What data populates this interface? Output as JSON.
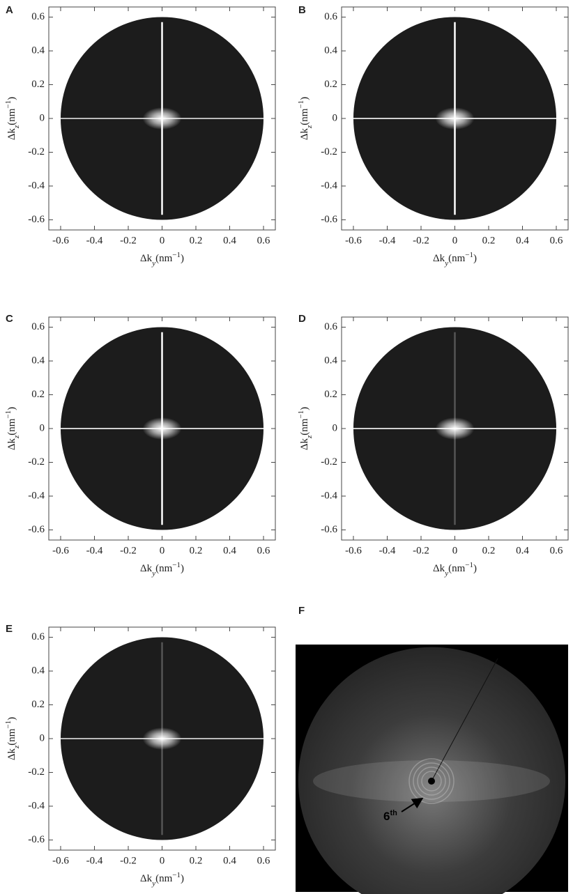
{
  "chart_data": [
    {
      "type": "diffraction",
      "label": "A",
      "xlabel": [
        "Δk",
        "y",
        "(nm",
        "−1",
        ")"
      ],
      "ylabel": [
        "Δk",
        "z",
        "(nm",
        "−1",
        ")"
      ],
      "xlim": [
        -0.67,
        0.67
      ],
      "ylim": [
        -0.66,
        0.66
      ],
      "xticks": [
        -0.6,
        -0.4,
        -0.2,
        0.0,
        0.2,
        0.4,
        0.6
      ],
      "yticks": [
        -0.6,
        -0.4,
        -0.2,
        0.0,
        0.2,
        0.4,
        0.6
      ],
      "disk_radius": 0.6
    },
    {
      "type": "diffraction",
      "label": "B",
      "xlabel": [
        "Δk",
        "y",
        "(nm",
        "−1",
        ")"
      ],
      "ylabel": [
        "Δk",
        "z",
        "(nm",
        "−1",
        ")"
      ],
      "xlim": [
        -0.67,
        0.67
      ],
      "ylim": [
        -0.66,
        0.66
      ],
      "xticks": [
        -0.6,
        -0.4,
        -0.2,
        0.0,
        0.2,
        0.4,
        0.6
      ],
      "yticks": [
        -0.6,
        -0.4,
        -0.2,
        0.0,
        0.2,
        0.4,
        0.6
      ],
      "disk_radius": 0.6
    },
    {
      "type": "diffraction",
      "label": "C",
      "xlabel": [
        "Δk",
        "y",
        "(nm",
        "−1",
        ")"
      ],
      "ylabel": [
        "Δk",
        "z",
        "(nm",
        "−1",
        ")"
      ],
      "xlim": [
        -0.67,
        0.67
      ],
      "ylim": [
        -0.66,
        0.66
      ],
      "xticks": [
        -0.6,
        -0.4,
        -0.2,
        0.0,
        0.2,
        0.4,
        0.6
      ],
      "yticks": [
        -0.6,
        -0.4,
        -0.2,
        0.0,
        0.2,
        0.4,
        0.6
      ],
      "disk_radius": 0.6
    },
    {
      "type": "diffraction",
      "label": "D",
      "xlabel": [
        "Δk",
        "y",
        "(nm",
        "−1",
        ")"
      ],
      "ylabel": [
        "Δk",
        "z",
        "(nm",
        "−1",
        ")"
      ],
      "xlim": [
        -0.67,
        0.67
      ],
      "ylim": [
        -0.66,
        0.66
      ],
      "xticks": [
        -0.6,
        -0.4,
        -0.2,
        0.0,
        0.2,
        0.4,
        0.6
      ],
      "yticks": [
        -0.6,
        -0.4,
        -0.2,
        0.0,
        0.2,
        0.4,
        0.6
      ],
      "disk_radius": 0.6
    },
    {
      "type": "diffraction",
      "label": "E",
      "xlabel": [
        "Δk",
        "y",
        "(nm",
        "−1",
        ")"
      ],
      "ylabel": [
        "Δk",
        "z",
        "(nm",
        "−1",
        ")"
      ],
      "xlim": [
        -0.67,
        0.67
      ],
      "ylim": [
        -0.66,
        0.66
      ],
      "xticks": [
        -0.6,
        -0.4,
        -0.2,
        0.0,
        0.2,
        0.4,
        0.6
      ],
      "yticks": [
        -0.6,
        -0.4,
        -0.2,
        0.0,
        0.2,
        0.4,
        0.6
      ],
      "disk_radius": 0.6
    },
    {
      "type": "photo",
      "label": "F",
      "annotation": [
        "6",
        "th"
      ]
    }
  ]
}
